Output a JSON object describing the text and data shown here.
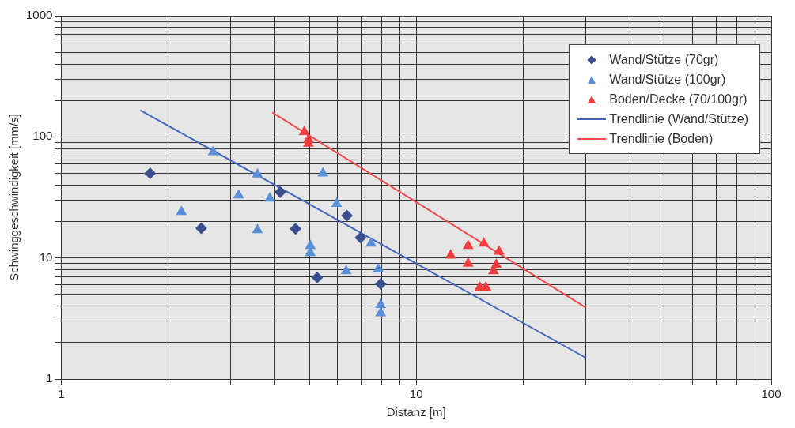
{
  "chart_data": {
    "type": "scatter",
    "xlabel": "Distanz [m]",
    "ylabel": "Schwinggeschwindigkeit [mm/s]",
    "log": "xy",
    "grid": true,
    "legend": "top right",
    "xlim": [
      1,
      100
    ],
    "ylim": [
      1,
      1000
    ],
    "xticks": [
      1,
      {
        "value": 2,
        "label": null
      },
      {
        "value": 3,
        "label": null
      },
      {
        "value": 4,
        "label": null
      },
      {
        "value": 5,
        "label": null
      },
      {
        "value": 6,
        "label": null
      },
      {
        "value": 7,
        "label": null
      },
      {
        "value": 8,
        "label": null
      },
      {
        "value": 9,
        "label": null
      },
      10,
      {
        "value": 20,
        "label": null
      },
      {
        "value": 30,
        "label": null
      },
      {
        "value": 40,
        "label": null
      },
      {
        "value": 50,
        "label": null
      },
      {
        "value": 60,
        "label": null
      },
      {
        "value": 70,
        "label": null
      },
      {
        "value": 80,
        "label": null
      },
      {
        "value": 90,
        "label": null
      },
      100
    ],
    "yticks": [
      1,
      {
        "value": 2,
        "label": null
      },
      {
        "value": 3,
        "label": null
      },
      {
        "value": 4,
        "label": null
      },
      {
        "value": 5,
        "label": null
      },
      {
        "value": 6,
        "label": null
      },
      {
        "value": 7,
        "label": null
      },
      {
        "value": 8,
        "label": null
      },
      {
        "value": 9,
        "label": null
      },
      10,
      {
        "value": 20,
        "label": null
      },
      {
        "value": 30,
        "label": null
      },
      {
        "value": 40,
        "label": null
      },
      {
        "value": 50,
        "label": null
      },
      {
        "value": 60,
        "label": null
      },
      {
        "value": 70,
        "label": null
      },
      {
        "value": 80,
        "label": null
      },
      {
        "value": 90,
        "label": null
      },
      100,
      {
        "value": 200,
        "label": null
      },
      {
        "value": 300,
        "label": null
      },
      {
        "value": 400,
        "label": null
      },
      {
        "value": 500,
        "label": null
      },
      {
        "value": 600,
        "label": null
      },
      {
        "value": 700,
        "label": null
      },
      {
        "value": 800,
        "label": null
      },
      {
        "value": 900,
        "label": null
      },
      1000
    ],
    "series": [
      {
        "name": "Wand/Stütze (70gr)",
        "type": "scatter",
        "marker": "diamond",
        "color": "#3b4f8f",
        "x": [
          1.78,
          2.48,
          4.14,
          4.57,
          6.38,
          6.97,
          5.26,
          7.94
        ],
        "values": [
          50,
          17.6,
          35,
          17.4,
          22.4,
          14.7,
          6.9,
          6.1
        ]
      },
      {
        "name": "Wand/Stütze (100gr)",
        "type": "scatter",
        "marker": "triangle",
        "color": "#5b8fd9",
        "x": [
          2.18,
          2.68,
          3.57,
          3.16,
          3.87,
          3.57,
          5.46,
          5.97,
          5.03,
          5.03,
          6.35,
          7.46,
          7.82,
          7.94,
          7.94
        ],
        "values": [
          24,
          75,
          49,
          33,
          31,
          17,
          50,
          28,
          12.6,
          11,
          7.8,
          13.2,
          8.1,
          4.1,
          3.5
        ]
      },
      {
        "name": "Boden/Decke (70/100gr)",
        "type": "scatter",
        "marker": "triangle",
        "color": "#f03c3c",
        "x": [
          4.84,
          4.97,
          4.97,
          12.5,
          14,
          14,
          15.5,
          17.1,
          16.8,
          16.5,
          15.1,
          15.7
        ],
        "values": [
          110,
          95,
          88,
          10.5,
          12.6,
          9,
          13.2,
          11.3,
          8.8,
          7.8,
          5.7,
          5.7
        ]
      },
      {
        "name": "Trendlinie (Wand/Stütze)",
        "type": "line",
        "marker": "none",
        "color": "#4466bb",
        "x": [
          1.67,
          30
        ],
        "values": [
          166,
          1.5
        ]
      },
      {
        "name": "Trendlinie (Boden)",
        "type": "line",
        "marker": "none",
        "color": "#f04a4a",
        "x": [
          3.93,
          30
        ],
        "values": [
          159,
          3.9
        ]
      }
    ]
  }
}
